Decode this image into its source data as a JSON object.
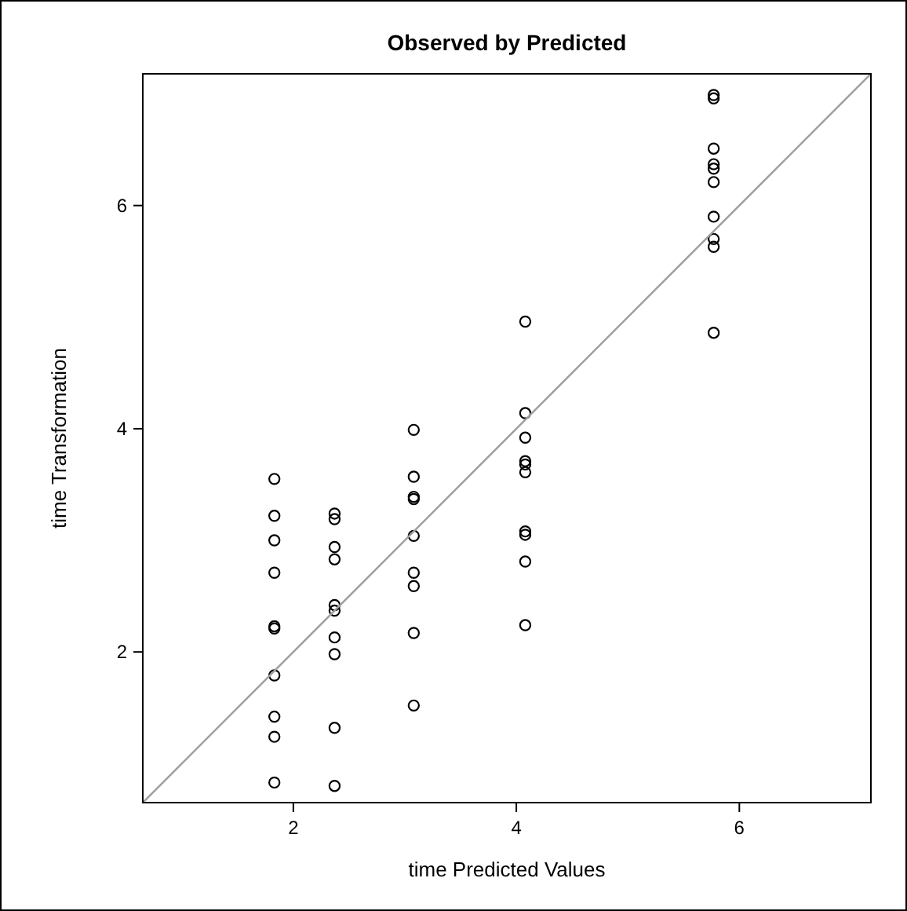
{
  "chart_data": {
    "type": "scatter",
    "title": "Observed by Predicted",
    "xlabel": "time Predicted Values",
    "ylabel": "time Transformation",
    "xlim": [
      0.65,
      7.18
    ],
    "ylim": [
      0.65,
      7.18
    ],
    "xticks": [
      2,
      4,
      6
    ],
    "yticks": [
      2,
      4,
      6
    ],
    "grid": false,
    "series": [
      {
        "color": "#000000",
        "marker": "circle",
        "x": [
          1.83,
          1.83,
          1.83,
          1.83,
          1.83,
          1.83,
          1.83,
          1.83,
          1.83,
          1.83,
          2.37,
          2.37,
          2.37,
          2.37,
          2.37,
          2.37,
          2.37,
          2.37,
          2.37,
          2.37,
          3.08,
          3.08,
          3.08,
          3.08,
          3.08,
          3.08,
          3.08,
          3.08,
          3.08,
          4.08,
          4.08,
          4.08,
          4.08,
          4.08,
          4.08,
          4.08,
          4.08,
          4.08,
          4.08,
          5.77,
          5.77,
          5.77,
          5.77,
          5.77,
          5.77,
          5.77,
          5.77,
          5.77,
          5.77
        ],
        "values": [
          3.55,
          3.22,
          3.0,
          2.71,
          2.23,
          2.21,
          1.79,
          1.42,
          1.24,
          0.83,
          3.24,
          3.19,
          2.94,
          2.83,
          2.42,
          2.37,
          2.13,
          1.98,
          1.32,
          0.8,
          3.99,
          3.57,
          3.39,
          3.37,
          3.04,
          2.71,
          2.59,
          2.17,
          1.52,
          4.96,
          4.14,
          3.92,
          3.71,
          3.68,
          3.61,
          3.08,
          3.05,
          2.81,
          2.24,
          6.99,
          6.96,
          6.51,
          6.37,
          6.33,
          6.21,
          5.9,
          5.7,
          5.63,
          4.86
        ]
      },
      {
        "type": "line",
        "color": "#a0a0a0",
        "marker": "none",
        "line_style": "solid",
        "x": [
          0.65,
          7.18
        ],
        "values": [
          0.65,
          7.18
        ]
      }
    ]
  }
}
